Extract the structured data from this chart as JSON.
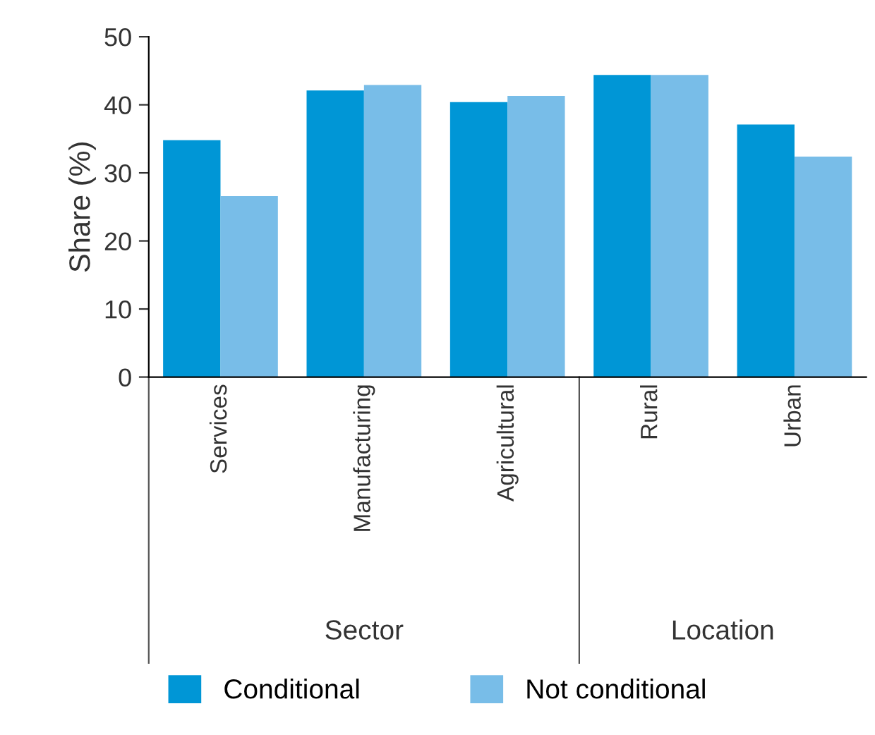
{
  "chart_data": {
    "type": "bar",
    "ylabel": "Share (%)",
    "categories": [
      "Services",
      "Manufacturing",
      "Agricultural",
      "Rural",
      "Urban"
    ],
    "series": [
      {
        "name": "Conditional",
        "color": "#0096d6",
        "values": [
          34.8,
          42.1,
          40.4,
          44.4,
          37.1
        ]
      },
      {
        "name": "Not conditional",
        "color": "#78bde8",
        "values": [
          26.6,
          42.9,
          41.3,
          44.4,
          32.4
        ]
      }
    ],
    "annotations": [
      "Sector",
      "Location"
    ],
    "ylim": [
      0,
      50
    ],
    "yticks": [
      0,
      10,
      20,
      30,
      40,
      50
    ],
    "grid": false,
    "legend": "bottom"
  }
}
